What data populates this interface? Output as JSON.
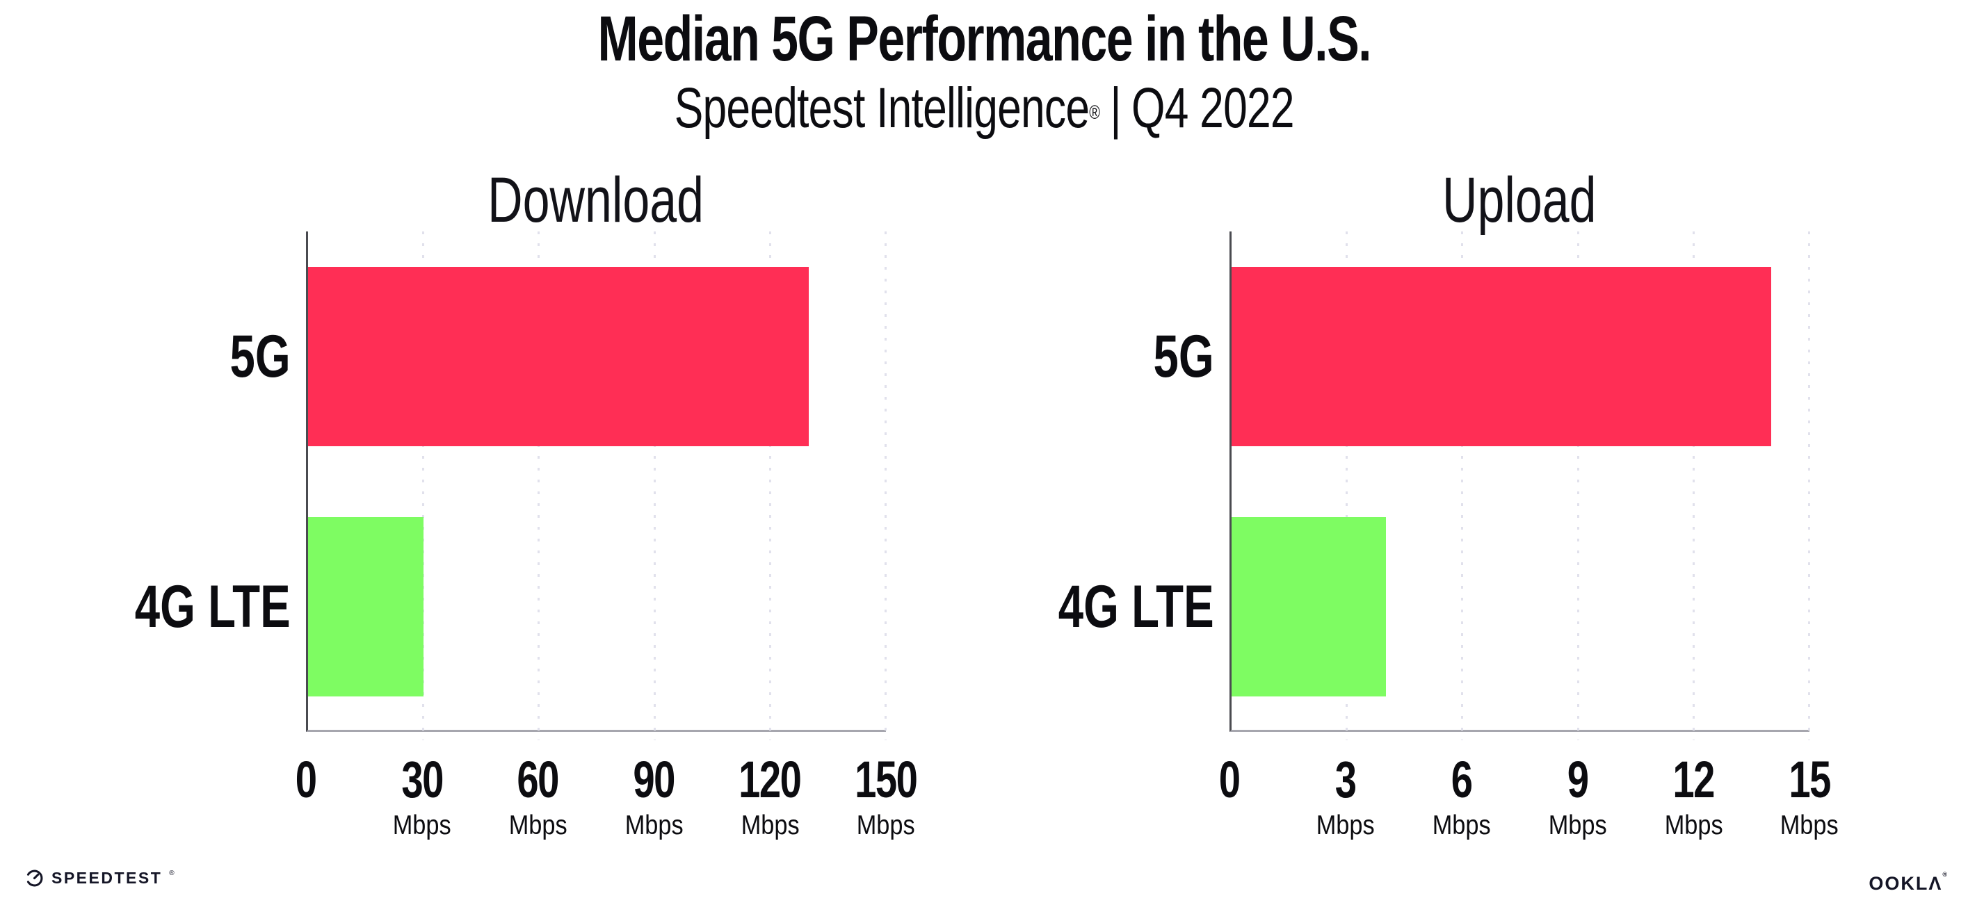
{
  "page": {
    "background": "#ffffff",
    "text_color": "#0c0c10"
  },
  "header": {
    "title": "Median 5G Performance in the U.S.",
    "subtitle_brand": "Speedtest Intelligence",
    "subtitle_reg": "®",
    "subtitle_separator": "|",
    "subtitle_period": "Q4 2022"
  },
  "chart_data": [
    {
      "type": "bar",
      "orientation": "horizontal",
      "title": "Download",
      "categories": [
        "5G",
        "4G LTE"
      ],
      "values": [
        130,
        30
      ],
      "unit": "Mbps",
      "xlim": [
        0,
        150
      ],
      "xticks": [
        0,
        30,
        60,
        90,
        120,
        150
      ],
      "bar_colors": [
        "#ff2e55",
        "#7efc62"
      ],
      "grid": "dotted-vertical-major",
      "legend": "none",
      "xlabel": "",
      "ylabel": ""
    },
    {
      "type": "bar",
      "orientation": "horizontal",
      "title": "Upload",
      "categories": [
        "5G",
        "4G LTE"
      ],
      "values": [
        14,
        4
      ],
      "unit": "Mbps",
      "xlim": [
        0,
        15
      ],
      "xticks": [
        0,
        3,
        6,
        9,
        12,
        15
      ],
      "bar_colors": [
        "#ff2e55",
        "#7efc62"
      ],
      "grid": "dotted-vertical-major",
      "legend": "none",
      "xlabel": "",
      "ylabel": ""
    }
  ],
  "colors": {
    "bar_5g": "#ff2e55",
    "bar_4g_lte": "#7efc62",
    "axis_spine": "#4a4b50",
    "axis_line": "#a6a6ae",
    "gridline": "#e1e1ec"
  },
  "footer": {
    "speedtest_logo_text": "SPEEDTEST",
    "speedtest_reg": "®",
    "ookla_logo_text": "OOKLΛ",
    "ookla_reg": "®"
  }
}
